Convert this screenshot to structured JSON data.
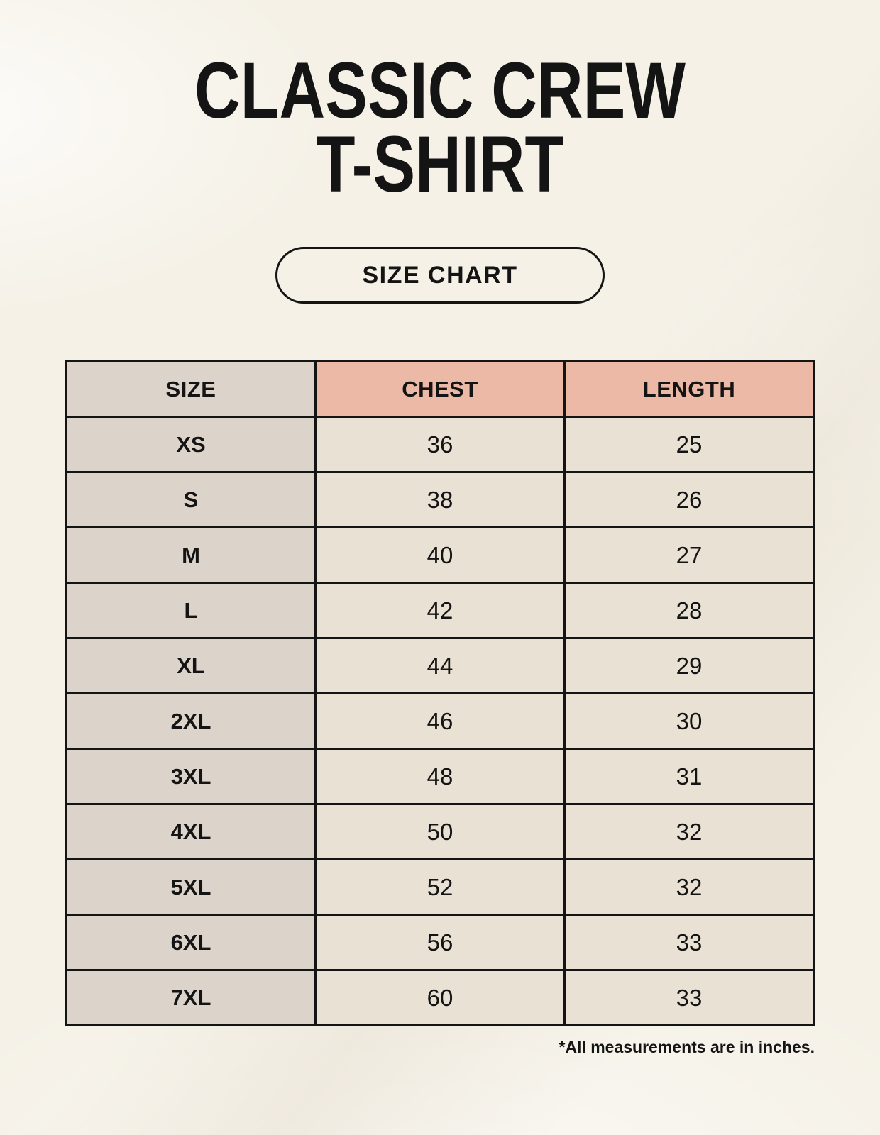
{
  "header": {
    "title_line1": "CLASSIC CREW",
    "title_line2": "T-SHIRT",
    "size_chart_button": "SIZE CHART"
  },
  "footnote": "*All measurements are in inches.",
  "colors": {
    "page_bg": "#f5f1e7",
    "size_col_bg": "#dcd3cb",
    "measure_header_bg": "#ecb9a6",
    "value_cell_bg": "#e9e1d4",
    "table_border": "#141414",
    "text": "#141414"
  },
  "chart_data": {
    "type": "table",
    "title": "CLASSIC CREW T-SHIRT",
    "subtitle": "SIZE CHART",
    "columns": [
      "SIZE",
      "CHEST",
      "LENGTH"
    ],
    "rows": [
      [
        "XS",
        "36",
        "25"
      ],
      [
        "S",
        "38",
        "26"
      ],
      [
        "M",
        "40",
        "27"
      ],
      [
        "L",
        "42",
        "28"
      ],
      [
        "XL",
        "44",
        "29"
      ],
      [
        "2XL",
        "46",
        "30"
      ],
      [
        "3XL",
        "48",
        "31"
      ],
      [
        "4XL",
        "50",
        "32"
      ],
      [
        "5XL",
        "52",
        "32"
      ],
      [
        "6XL",
        "56",
        "33"
      ],
      [
        "7XL",
        "60",
        "33"
      ]
    ],
    "footnote": "*All measurements are in inches.",
    "units": "inches"
  }
}
